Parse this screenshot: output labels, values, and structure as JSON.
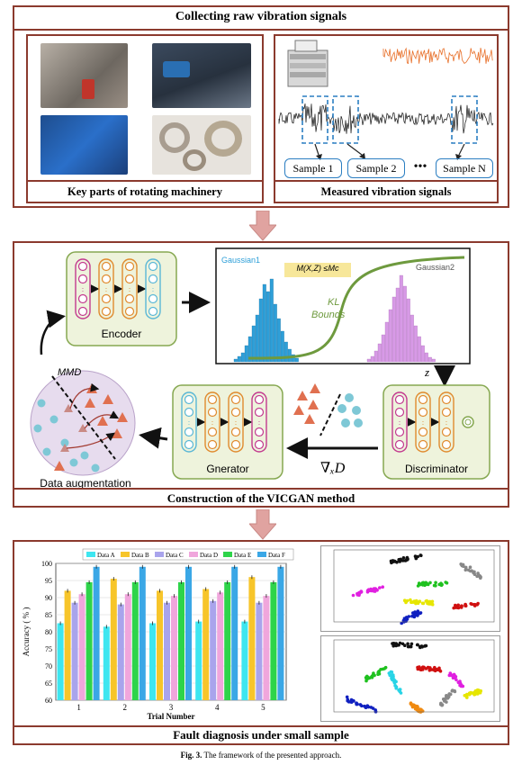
{
  "stage1": {
    "title": "Collecting  raw vibration signals",
    "left_caption": "Key parts of rotating machinery",
    "right_caption": "Measured vibration signals",
    "samples": [
      "Sample 1",
      "Sample 2",
      "Sample N"
    ],
    "ellipsis": "•••"
  },
  "stage2": {
    "title": "Construction of the VICGAN method",
    "encoder_label": "Encoder",
    "generator_label": "Gnerator",
    "discriminator_label": "Discriminator",
    "augmentation_label": "Data augmentation",
    "mmd_label": "MMD",
    "gaussian1": "Gaussian1",
    "gaussian2": "Gaussian2",
    "constraint": "M(X,Z) ≤Mᴄ",
    "kl_line1": "KL",
    "kl_line2": "Bounds",
    "z_label": "z",
    "grad_label": "∇ₓD"
  },
  "stage3": {
    "title": "Fault diagnosis under small sample",
    "chart_data": {
      "type": "bar",
      "xlabel": "Trial Number",
      "ylabel": "Accuracy ( % )",
      "ylim": [
        60,
        100
      ],
      "yticks": [
        60,
        65,
        70,
        75,
        80,
        85,
        90,
        95,
        100
      ],
      "categories": [
        "1",
        "2",
        "3",
        "4",
        "5"
      ],
      "legend_position": "top",
      "series": [
        {
          "name": "Data A",
          "color": "#3ee6f0",
          "values": [
            82.5,
            81.5,
            82.5,
            83,
            83
          ]
        },
        {
          "name": "Data B",
          "color": "#f7c52a",
          "values": [
            92,
            95.5,
            92,
            92.5,
            96
          ]
        },
        {
          "name": "Data C",
          "color": "#a9a4ec",
          "values": [
            88.5,
            88,
            88.5,
            89,
            88.5
          ]
        },
        {
          "name": "Data D",
          "color": "#f0a6dc",
          "values": [
            91,
            91,
            90.5,
            91.5,
            90.5
          ]
        },
        {
          "name": "Data E",
          "color": "#2ed44a",
          "values": [
            94.5,
            94.5,
            94.5,
            94.5,
            94.5
          ]
        },
        {
          "name": "Data F",
          "color": "#3aa7e6",
          "values": [
            99,
            99,
            99,
            99,
            99
          ]
        }
      ]
    }
  },
  "caption": {
    "prefix": "Fig. 3.",
    "text": "The framework of the presented approach."
  },
  "colors": {
    "frame_border": "#8b3a2e",
    "arrow_pink": "#e0a3a0",
    "panel_green": "#eef3dc",
    "panel_green_border": "#86a851",
    "dist_blue": "#2e9fd8",
    "dist_purple": "#d79ae6",
    "curve_green": "#6e9a3e",
    "scatter_triangle": "#e07050",
    "scatter_circle": "#7ec8d6"
  }
}
